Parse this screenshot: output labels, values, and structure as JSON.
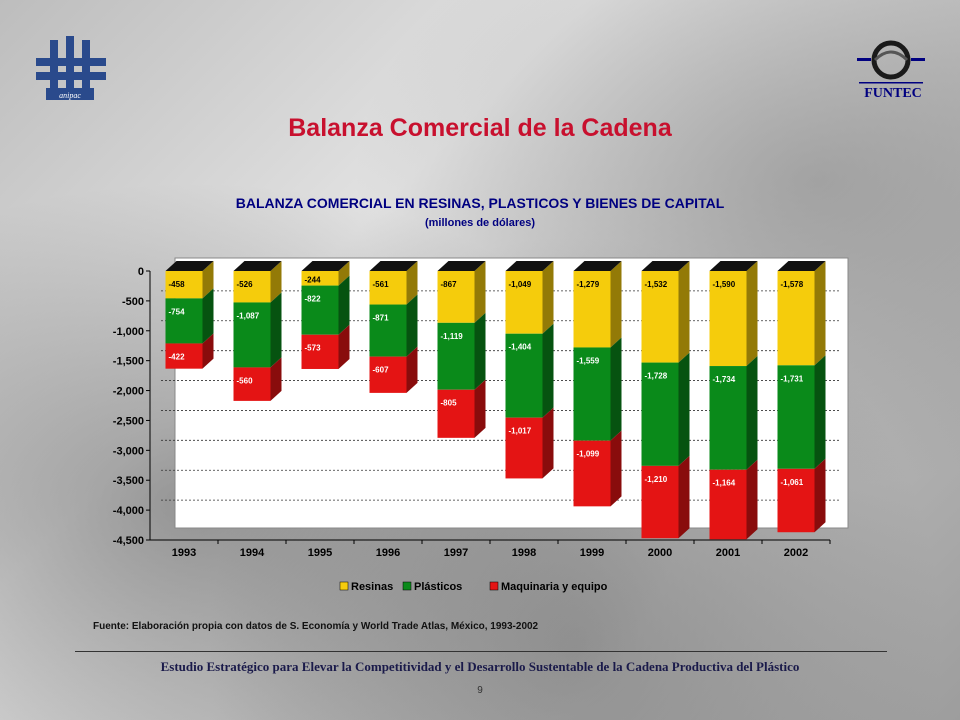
{
  "slide": {
    "title": "Balanza Comercial de la Cadena",
    "logo_left_text": "anipac",
    "logo_right_text": "FUNTEC",
    "source": "Fuente: Elaboración propia con datos de S. Economía y World Trade Atlas, México, 1993-2002",
    "footer": "Estudio Estratégico para Elevar la Competitividad y el Desarrollo Sustentable de la Cadena Productiva del Plástico",
    "page_number": "9"
  },
  "chart_data": {
    "type": "bar",
    "stacked": true,
    "title": "BALANZA COMERCIAL EN RESINAS, PLASTICOS Y BIENES DE CAPITAL",
    "subtitle": "(millones de dólares)",
    "categories": [
      "1993",
      "1994",
      "1995",
      "1996",
      "1997",
      "1998",
      "1999",
      "2000",
      "2001",
      "2002"
    ],
    "series": [
      {
        "name": "Resinas",
        "color": "#f5cc0c",
        "values": [
          -458,
          -526,
          -244,
          -561,
          -867,
          -1049,
          -1279,
          -1532,
          -1590,
          -1578
        ]
      },
      {
        "name": "Plásticos",
        "color": "#0a8a1a",
        "values": [
          -754,
          -1087,
          -822,
          -871,
          -1119,
          -1404,
          -1559,
          -1728,
          -1734,
          -1731
        ]
      },
      {
        "name": "Maquinaria y equipo",
        "color": "#e41414",
        "values": [
          -422,
          -560,
          -573,
          -607,
          -805,
          -1017,
          -1099,
          -1210,
          -1164,
          -1061
        ]
      }
    ],
    "yticks": [
      "0",
      "-500",
      "-1,000",
      "-1,500",
      "-2,000",
      "-2,500",
      "-3,000",
      "-3,500",
      "-4,000",
      "-4,500"
    ],
    "ylim": [
      -4500,
      0
    ],
    "grid": true,
    "legend": "bottom"
  }
}
